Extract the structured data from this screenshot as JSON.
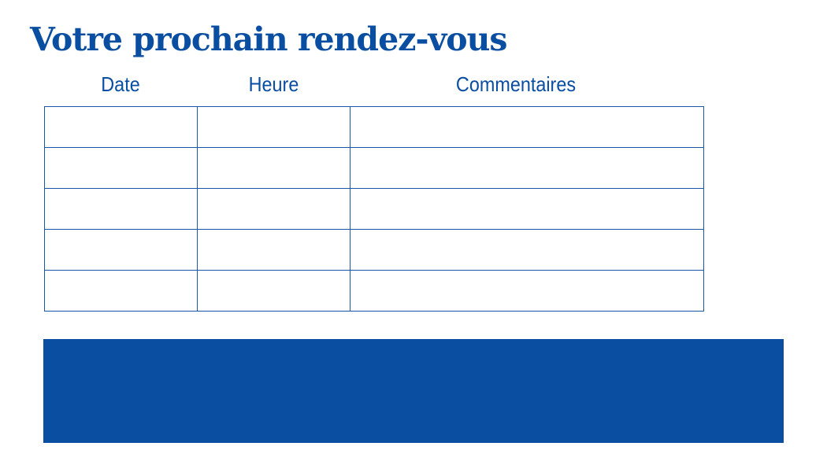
{
  "title": "Votre prochain rendez-vous",
  "table": {
    "headers": [
      "Date",
      "Heure",
      "Commentaires"
    ],
    "rows": [
      [
        "",
        "",
        ""
      ],
      [
        "",
        "",
        ""
      ],
      [
        "",
        "",
        ""
      ],
      [
        "",
        "",
        ""
      ],
      [
        "",
        "",
        ""
      ]
    ]
  },
  "colors": {
    "brand_blue": "#0a4ea2",
    "background": "#ffffff"
  }
}
